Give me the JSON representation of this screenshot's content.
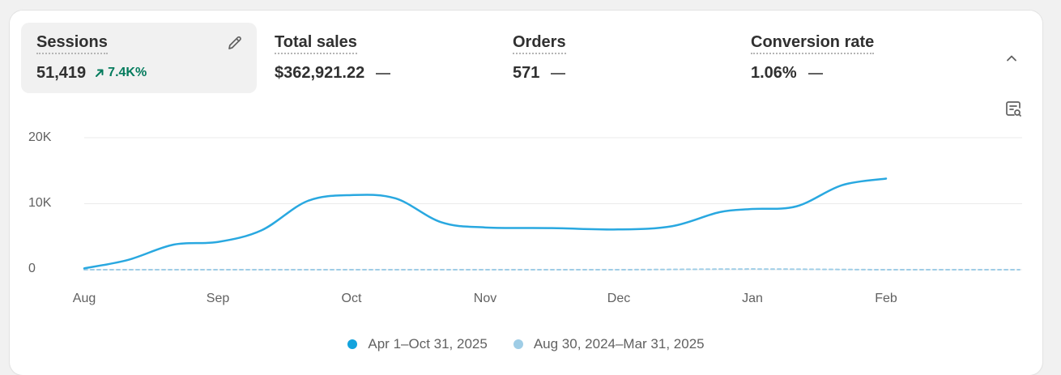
{
  "metrics": [
    {
      "label": "Sessions",
      "value": "51,419",
      "delta": "7.4K%"
    },
    {
      "label": "Total sales",
      "value": "$362,921.22"
    },
    {
      "label": "Orders",
      "value": "571"
    },
    {
      "label": "Conversion rate",
      "value": "1.06%"
    }
  ],
  "icons": {
    "edit": "pencil-icon",
    "collapse": "chevron-up-icon",
    "chart_settings": "chart-search-icon"
  },
  "colors": {
    "current_series": "#29a8e0",
    "previous_series": "#9fcde6",
    "positive_delta": "#047b5d"
  },
  "chart_data": {
    "type": "line",
    "x": [
      "Aug",
      "Sep",
      "Oct",
      "Nov",
      "Dec",
      "Jan",
      "Feb"
    ],
    "y_ticks": [
      "20K",
      "10K",
      "0"
    ],
    "ylim": [
      0,
      20000
    ],
    "series": [
      {
        "name": "Apr 1–Oct 31, 2025",
        "points": [
          [
            0,
            200
          ],
          [
            0.33,
            1500
          ],
          [
            0.67,
            3800
          ],
          [
            1.0,
            4200
          ],
          [
            1.33,
            6000
          ],
          [
            1.67,
            10400
          ],
          [
            2.0,
            11300
          ],
          [
            2.33,
            10800
          ],
          [
            2.67,
            7200
          ],
          [
            3.0,
            6400
          ],
          [
            3.5,
            6300
          ],
          [
            4.0,
            6100
          ],
          [
            4.4,
            6600
          ],
          [
            4.75,
            8700
          ],
          [
            5.0,
            9200
          ],
          [
            5.33,
            9600
          ],
          [
            5.67,
            12800
          ],
          [
            6.0,
            13800
          ]
        ],
        "style": "solid"
      },
      {
        "name": "Aug 30, 2024–Mar 31, 2025",
        "points": [
          [
            0,
            0
          ],
          [
            1,
            0
          ],
          [
            2,
            0
          ],
          [
            3,
            0
          ],
          [
            4,
            0
          ],
          [
            5,
            100
          ],
          [
            6,
            0
          ],
          [
            7,
            0
          ]
        ],
        "style": "dashed"
      }
    ],
    "grid": true
  }
}
